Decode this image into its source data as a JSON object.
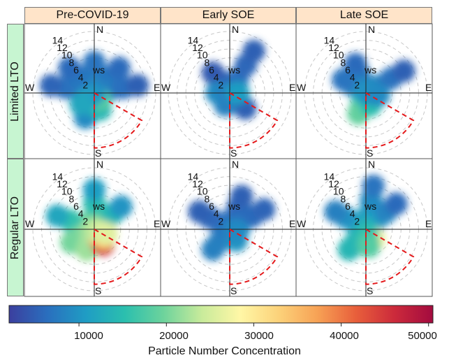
{
  "chart_data": {
    "type": "polar-heatmap",
    "columns": [
      "Pre-COVID-19",
      "Early SOE",
      "Late SOE"
    ],
    "rows": [
      "Limited LTO",
      "Regular LTO"
    ],
    "compass_labels": [
      "N",
      "E",
      "S",
      "W"
    ],
    "radial_label": "ws",
    "radial_ticks": [
      2,
      4,
      6,
      8,
      10,
      12,
      14
    ],
    "colorbar": {
      "title": "Particle Number Concentration",
      "ticks": [
        10000,
        20000,
        30000,
        40000,
        50000
      ],
      "tick_labels": [
        "10000",
        "20000",
        "30000",
        "40000",
        "50000"
      ],
      "range": [
        2000,
        50500
      ],
      "palette": [
        "#3b3f9e",
        "#2a6fbe",
        "#1f9dc4",
        "#2bbfae",
        "#6dd39c",
        "#c9eb9b",
        "#fff7a6",
        "#fcd27a",
        "#f7a255",
        "#e85f3b",
        "#cc2a3b",
        "#a30b3f"
      ]
    },
    "highlight_sector_deg": [
      120,
      180
    ],
    "panels": [
      {
        "row": 0,
        "col": 0,
        "blobs": [
          {
            "ang": 0,
            "r": 7,
            "v": 7000
          },
          {
            "ang": 45,
            "r": 8,
            "v": 6000
          },
          {
            "ang": 80,
            "r": 10,
            "v": 5000
          },
          {
            "ang": 280,
            "r": 10,
            "v": 5500
          },
          {
            "ang": 315,
            "r": 8,
            "v": 6000
          },
          {
            "ang": 200,
            "r": 6,
            "v": 9000
          },
          {
            "ang": 160,
            "r": 4,
            "v": 14000
          },
          {
            "ang": 140,
            "r": 2,
            "v": 18000
          },
          {
            "ang": 230,
            "r": 4,
            "v": 12000
          }
        ]
      },
      {
        "row": 0,
        "col": 1,
        "blobs": [
          {
            "ang": 30,
            "r": 11,
            "v": 5000
          },
          {
            "ang": 320,
            "r": 6,
            "v": 4500
          },
          {
            "ang": 135,
            "r": 5,
            "v": 5000
          },
          {
            "ang": 200,
            "r": 3,
            "v": 8000
          },
          {
            "ang": 270,
            "r": 3,
            "v": 9000
          },
          {
            "ang": 90,
            "r": 2,
            "v": 11000
          }
        ]
      },
      {
        "row": 0,
        "col": 2,
        "blobs": [
          {
            "ang": 60,
            "r": 10,
            "v": 5000
          },
          {
            "ang": 340,
            "r": 7,
            "v": 6000
          },
          {
            "ang": 300,
            "r": 6,
            "v": 7000
          },
          {
            "ang": 200,
            "r": 5,
            "v": 19000
          },
          {
            "ang": 160,
            "r": 3,
            "v": 15000
          },
          {
            "ang": 100,
            "r": 3,
            "v": 9000
          }
        ]
      },
      {
        "row": 1,
        "col": 0,
        "blobs": [
          {
            "ang": 0,
            "r": 9,
            "v": 11000
          },
          {
            "ang": 50,
            "r": 8,
            "v": 10000
          },
          {
            "ang": 290,
            "r": 9,
            "v": 12000
          },
          {
            "ang": 240,
            "r": 6,
            "v": 20000
          },
          {
            "ang": 200,
            "r": 5,
            "v": 22000
          },
          {
            "ang": 150,
            "r": 4,
            "v": 46000
          },
          {
            "ang": 135,
            "r": 3,
            "v": 34000
          },
          {
            "ang": 110,
            "r": 3,
            "v": 26000
          }
        ]
      },
      {
        "row": 1,
        "col": 1,
        "blobs": [
          {
            "ang": 20,
            "r": 8,
            "v": 5000
          },
          {
            "ang": 60,
            "r": 9,
            "v": 5500
          },
          {
            "ang": 300,
            "r": 8,
            "v": 5000
          },
          {
            "ang": 220,
            "r": 6,
            "v": 8000
          },
          {
            "ang": 150,
            "r": 3,
            "v": 10000
          },
          {
            "ang": 100,
            "r": 2,
            "v": 9000
          }
        ]
      },
      {
        "row": 1,
        "col": 2,
        "blobs": [
          {
            "ang": 10,
            "r": 10,
            "v": 7000
          },
          {
            "ang": 50,
            "r": 9,
            "v": 6000
          },
          {
            "ang": 300,
            "r": 8,
            "v": 8000
          },
          {
            "ang": 220,
            "r": 6,
            "v": 14000
          },
          {
            "ang": 140,
            "r": 3,
            "v": 27000
          },
          {
            "ang": 170,
            "r": 4,
            "v": 18000
          }
        ]
      }
    ]
  }
}
